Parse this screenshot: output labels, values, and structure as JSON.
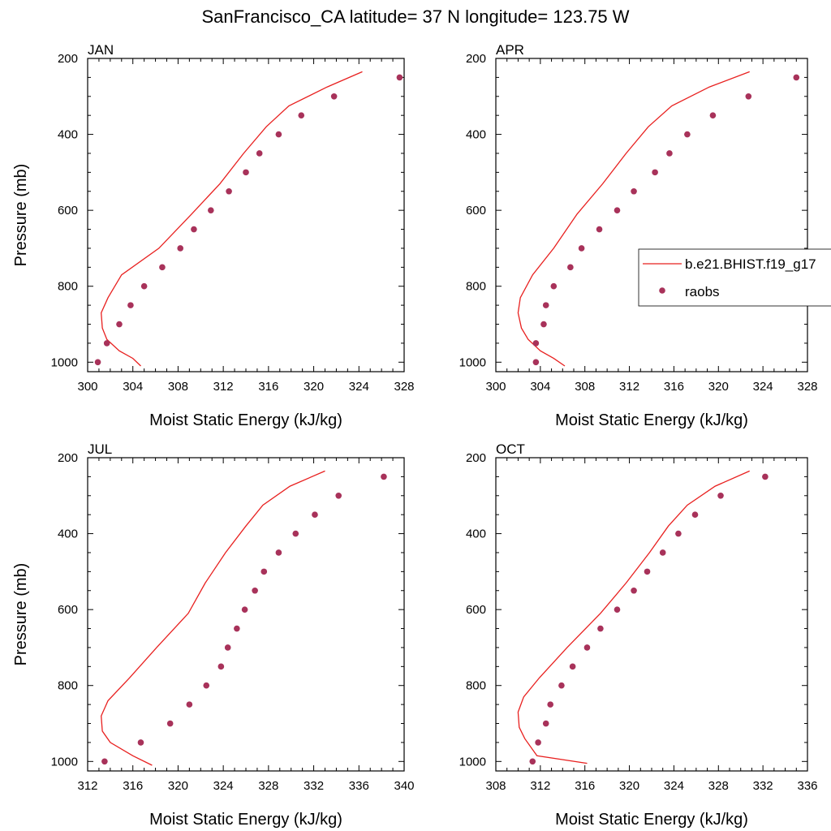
{
  "title": "SanFrancisco_CA  latitude= 37 N longitude= 123.75 W",
  "colors": {
    "model": "#e8201f",
    "obs": "#a8325a"
  },
  "legend": {
    "model_label": "b.e21.BHIST.f19_g17",
    "obs_label": "raobs"
  },
  "chart_data": [
    {
      "type": "line",
      "panel": "JAN",
      "xlabel": "Moist Static Energy (kJ/kg)",
      "ylabel": "Pressure (mb)",
      "xlim": [
        300,
        328
      ],
      "ylim": [
        200,
        1025
      ],
      "y_inverted": true,
      "x_ticks": [
        300,
        304,
        308,
        312,
        316,
        320,
        324,
        328
      ],
      "y_ticks": [
        200,
        400,
        600,
        800,
        1000
      ],
      "series": [
        {
          "name": "b.e21.BHIST.f19_g17",
          "kind": "line",
          "x": [
            324.3,
            321.2,
            317.8,
            315.8,
            313.8,
            311.7,
            309.2,
            306.3,
            303.0,
            301.8,
            301.2,
            301.3,
            301.7,
            302.8,
            304.0,
            304.7
          ],
          "y": [
            235,
            275,
            325,
            380,
            450,
            530,
            610,
            700,
            770,
            830,
            870,
            910,
            940,
            970,
            990,
            1010
          ]
        },
        {
          "name": "raobs",
          "kind": "scatter",
          "x": [
            327.6,
            321.8,
            318.9,
            316.9,
            315.2,
            314.0,
            312.5,
            310.9,
            309.4,
            308.2,
            306.6,
            305.0,
            303.8,
            302.8,
            301.7,
            300.9
          ],
          "y": [
            250,
            300,
            350,
            400,
            450,
            500,
            550,
            600,
            650,
            700,
            750,
            800,
            850,
            900,
            950,
            1000
          ]
        }
      ]
    },
    {
      "type": "line",
      "panel": "APR",
      "xlabel": "Moist Static Energy (kJ/kg)",
      "ylabel": "",
      "xlim": [
        300,
        328
      ],
      "ylim": [
        200,
        1025
      ],
      "y_inverted": true,
      "x_ticks": [
        300,
        304,
        308,
        312,
        316,
        320,
        324,
        328
      ],
      "y_ticks": [
        200,
        400,
        600,
        800,
        1000
      ],
      "series": [
        {
          "name": "b.e21.BHIST.f19_g17",
          "kind": "line",
          "x": [
            322.8,
            319.2,
            315.8,
            313.7,
            311.7,
            309.6,
            307.3,
            305.2,
            303.3,
            302.2,
            302.0,
            302.3,
            302.9,
            304.0,
            305.2,
            306.2
          ],
          "y": [
            235,
            275,
            325,
            380,
            450,
            530,
            610,
            700,
            770,
            830,
            870,
            910,
            940,
            970,
            990,
            1010
          ]
        },
        {
          "name": "raobs",
          "kind": "scatter",
          "x": [
            327.0,
            322.7,
            319.5,
            317.2,
            315.6,
            314.3,
            312.4,
            310.9,
            309.3,
            307.7,
            306.7,
            305.2,
            304.5,
            304.3,
            303.6,
            303.6
          ],
          "y": [
            250,
            300,
            350,
            400,
            450,
            500,
            550,
            600,
            650,
            700,
            750,
            800,
            850,
            900,
            950,
            1000
          ]
        }
      ]
    },
    {
      "type": "line",
      "panel": "JUL",
      "xlabel": "Moist Static Energy (kJ/kg)",
      "ylabel": "Pressure (mb)",
      "xlim": [
        312,
        340
      ],
      "ylim": [
        200,
        1025
      ],
      "y_inverted": true,
      "x_ticks": [
        312,
        316,
        320,
        324,
        328,
        332,
        336,
        340
      ],
      "y_ticks": [
        200,
        400,
        600,
        800,
        1000
      ],
      "series": [
        {
          "name": "b.e21.BHIST.f19_g17",
          "kind": "line",
          "x": [
            333.0,
            329.9,
            327.5,
            326.0,
            324.2,
            322.4,
            320.9,
            318.1,
            315.7,
            313.8,
            313.2,
            313.3,
            314.0,
            316.0,
            317.7
          ],
          "y": [
            235,
            275,
            325,
            380,
            450,
            530,
            610,
            700,
            780,
            840,
            880,
            920,
            950,
            985,
            1010
          ]
        },
        {
          "name": "raobs",
          "kind": "scatter",
          "x": [
            338.2,
            334.2,
            332.1,
            330.4,
            328.9,
            327.6,
            326.8,
            325.9,
            325.2,
            324.4,
            323.8,
            322.5,
            321.0,
            319.3,
            316.7,
            313.5
          ],
          "y": [
            250,
            300,
            350,
            400,
            450,
            500,
            550,
            600,
            650,
            700,
            750,
            800,
            850,
            900,
            950,
            1000
          ]
        }
      ]
    },
    {
      "type": "line",
      "panel": "OCT",
      "xlabel": "Moist Static Energy (kJ/kg)",
      "ylabel": "",
      "xlim": [
        308,
        336
      ],
      "ylim": [
        200,
        1025
      ],
      "y_inverted": true,
      "x_ticks": [
        308,
        312,
        316,
        320,
        324,
        328,
        332,
        336
      ],
      "y_ticks": [
        200,
        400,
        600,
        800,
        1000
      ],
      "series": [
        {
          "name": "b.e21.BHIST.f19_g17",
          "kind": "line",
          "x": [
            330.8,
            327.7,
            325.2,
            323.5,
            321.8,
            319.7,
            317.4,
            314.4,
            311.9,
            310.5,
            310.0,
            310.1,
            310.6,
            311.7,
            316.2
          ],
          "y": [
            235,
            275,
            325,
            380,
            450,
            530,
            610,
            700,
            780,
            830,
            870,
            910,
            940,
            985,
            1005
          ]
        },
        {
          "name": "raobs",
          "kind": "scatter",
          "x": [
            332.2,
            328.2,
            325.9,
            324.4,
            323.0,
            321.6,
            320.4,
            318.9,
            317.4,
            316.2,
            314.9,
            313.9,
            312.9,
            312.5,
            311.8,
            311.3
          ],
          "y": [
            250,
            300,
            350,
            400,
            450,
            500,
            550,
            600,
            650,
            700,
            750,
            800,
            850,
            900,
            950,
            1000
          ]
        }
      ]
    }
  ]
}
